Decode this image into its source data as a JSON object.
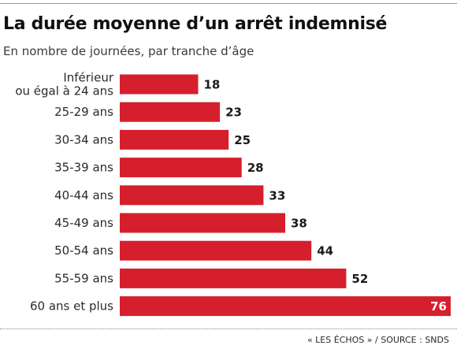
{
  "header": {
    "title": "La durée moyenne d’un arrêt indemnisé",
    "subtitle": "En nombre de journées, par tranche d’âge"
  },
  "footer": {
    "source": "« LES ÉCHOS » / SOURCE : SNDS"
  },
  "colors": {
    "bar": "#d61f2c",
    "value_label_outside": "#1a1a1a",
    "value_label_inside": "#ffffff",
    "category_label": "#2a2a2a"
  },
  "chart_data": {
    "type": "bar",
    "orientation": "horizontal",
    "title": "La durée moyenne d’un arrêt indemnisé",
    "subtitle": "En nombre de journées, par tranche d’âge",
    "categories": [
      "Inférieur\nou égal à 24 ans",
      "25-29 ans",
      "30-34 ans",
      "35-39 ans",
      "40-44 ans",
      "45-49 ans",
      "50-54 ans",
      "55-59 ans",
      "60 ans et plus"
    ],
    "values": [
      18,
      23,
      25,
      28,
      33,
      38,
      44,
      52,
      76
    ],
    "xlim": [
      0,
      76
    ],
    "grid": false,
    "legend": "none"
  }
}
